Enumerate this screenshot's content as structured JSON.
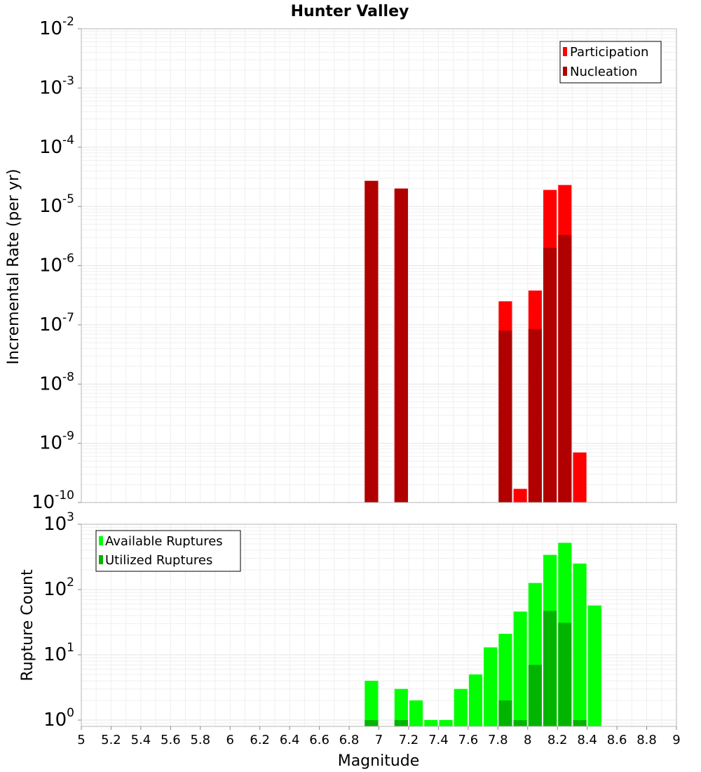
{
  "figure": {
    "title": "Hunter Valley",
    "xlabel": "Magnitude",
    "xticks": [
      "5",
      "5.2",
      "5.4",
      "5.6",
      "5.8",
      "6",
      "6.2",
      "6.4",
      "6.6",
      "6.8",
      "7",
      "7.2",
      "7.4",
      "7.6",
      "7.8",
      "8",
      "8.2",
      "8.4",
      "8.6",
      "8.8",
      "9"
    ]
  },
  "chart_data": [
    {
      "type": "bar",
      "ylabel": "Incremental Rate (per yr)",
      "yscale": "log",
      "xlim": [
        5,
        9
      ],
      "ylim": [
        1e-10,
        0.01
      ],
      "ytick_exponents": [
        "-10",
        "-9",
        "-8",
        "-7",
        "-6",
        "-5",
        "-4",
        "-3",
        "-2"
      ],
      "grid": true,
      "legend_position": "top-right",
      "bar_width": 0.09,
      "series": [
        {
          "name": "Participation",
          "color": "#ff0000",
          "x": [
            6.95,
            7.15,
            7.85,
            7.95,
            8.05,
            8.15,
            8.25,
            8.35
          ],
          "values": [
            2.7e-05,
            2e-05,
            2.5e-07,
            1.7e-10,
            3.8e-07,
            1.9e-05,
            2.3e-05,
            7e-10
          ]
        },
        {
          "name": "Nucleation",
          "color": "#b00000",
          "x": [
            6.95,
            7.15,
            7.85,
            8.05,
            8.15,
            8.25
          ],
          "values": [
            2.7e-05,
            2e-05,
            8e-08,
            8.5e-08,
            2e-06,
            3.3e-06
          ]
        }
      ]
    },
    {
      "type": "bar",
      "ylabel": "Rupture Count",
      "yscale": "log",
      "xlim": [
        5,
        9
      ],
      "ylim": [
        0.8,
        1000
      ],
      "ytick_exponents": [
        "0",
        "1",
        "2",
        "3"
      ],
      "grid": true,
      "legend_position": "top-left",
      "bar_width": 0.09,
      "series": [
        {
          "name": "Available Ruptures",
          "color": "#00ff00",
          "x": [
            6.95,
            7.15,
            7.25,
            7.35,
            7.45,
            7.55,
            7.65,
            7.75,
            7.85,
            7.95,
            8.05,
            8.15,
            8.25,
            8.35,
            8.45
          ],
          "values": [
            4,
            3,
            2,
            1,
            1,
            3,
            5,
            13,
            21,
            46,
            126,
            340,
            520,
            250,
            57
          ]
        },
        {
          "name": "Utilized Ruptures",
          "color": "#00b400",
          "x": [
            6.95,
            7.15,
            7.85,
            7.95,
            8.05,
            8.15,
            8.25,
            8.35
          ],
          "values": [
            1,
            1,
            2,
            1,
            7,
            47,
            31,
            1
          ]
        }
      ]
    }
  ]
}
